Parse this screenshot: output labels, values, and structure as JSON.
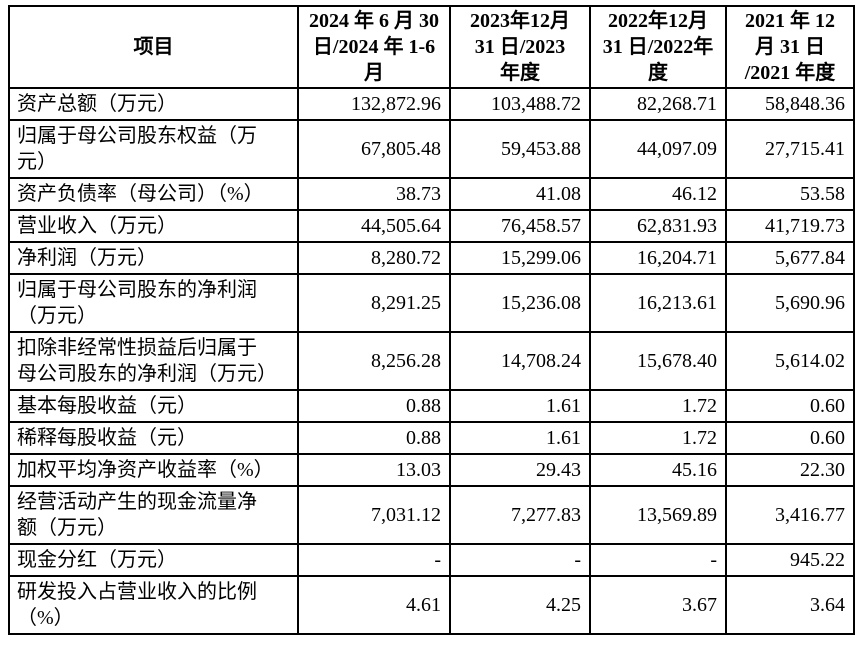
{
  "table": {
    "header": {
      "item_label": "项目",
      "periods": [
        "2024 年 6 月 30\n日/2024 年 1-6\n月",
        "2023年12月\n31 日/2023\n年度",
        "2022年12月\n31 日/2022年\n度",
        "2021 年 12\n月 31 日\n/2021 年度"
      ]
    },
    "rows": [
      {
        "label": "资产总额（万元）",
        "values": [
          "132,872.96",
          "103,488.72",
          "82,268.71",
          "58,848.36"
        ]
      },
      {
        "label": "归属于母公司股东权益（万\n元）",
        "values": [
          "67,805.48",
          "59,453.88",
          "44,097.09",
          "27,715.41"
        ]
      },
      {
        "label": "资产负债率（母公司）（%）",
        "values": [
          "38.73",
          "41.08",
          "46.12",
          "53.58"
        ]
      },
      {
        "label": "营业收入（万元）",
        "values": [
          "44,505.64",
          "76,458.57",
          "62,831.93",
          "41,719.73"
        ]
      },
      {
        "label": "净利润（万元）",
        "values": [
          "8,280.72",
          "15,299.06",
          "16,204.71",
          "5,677.84"
        ]
      },
      {
        "label": "归属于母公司股东的净利润\n（万元）",
        "values": [
          "8,291.25",
          "15,236.08",
          "16,213.61",
          "5,690.96"
        ]
      },
      {
        "label": "扣除非经常性损益后归属于\n母公司股东的净利润（万元）",
        "values": [
          "8,256.28",
          "14,708.24",
          "15,678.40",
          "5,614.02"
        ]
      },
      {
        "label": "基本每股收益（元）",
        "values": [
          "0.88",
          "1.61",
          "1.72",
          "0.60"
        ]
      },
      {
        "label": "稀释每股收益（元）",
        "values": [
          "0.88",
          "1.61",
          "1.72",
          "0.60"
        ]
      },
      {
        "label": "加权平均净资产收益率（%）",
        "values": [
          "13.03",
          "29.43",
          "45.16",
          "22.30"
        ]
      },
      {
        "label": "经营活动产生的现金流量净\n额（万元）",
        "values": [
          "7,031.12",
          "7,277.83",
          "13,569.89",
          "3,416.77"
        ]
      },
      {
        "label": "现金分红（万元）",
        "values": [
          "-",
          "-",
          "-",
          "945.22"
        ]
      },
      {
        "label": "研发投入占营业收入的比例\n（%）",
        "values": [
          "4.61",
          "4.25",
          "3.67",
          "3.64"
        ]
      }
    ]
  }
}
